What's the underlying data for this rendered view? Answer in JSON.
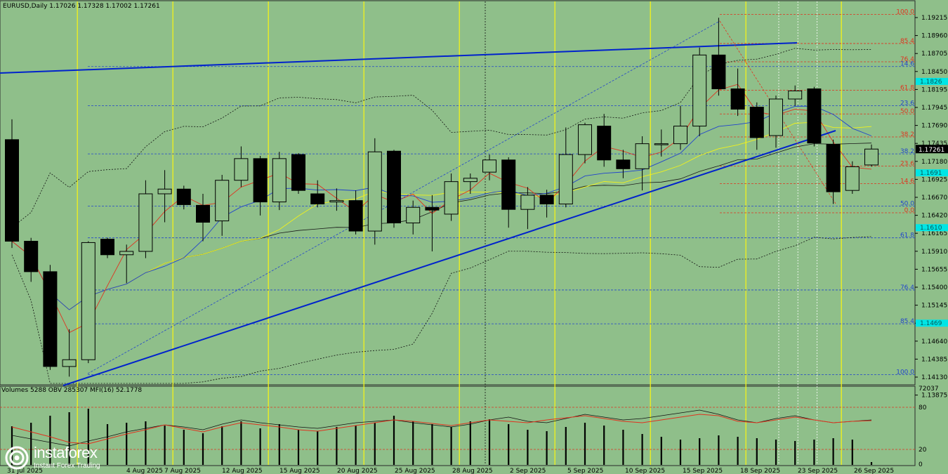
{
  "header": {
    "symbol_line": "EURUSD,Daily  1.17026 1.17328 1.17002 1.17261"
  },
  "indicator_header": "Volumes 5288  OBV 285307  MFI(16) 52.1778",
  "logo": {
    "name": "instaforex",
    "tagline": "Instant Forex Trading"
  },
  "colors": {
    "background": "#8fbf8a",
    "bull_candle": "#8fbf8a",
    "bear_candle": "#000000",
    "trendline": "#0022cc",
    "fib_red": "#e0331f",
    "fib_blue": "#2244cc",
    "vline_yellow": "#f2f21a",
    "price_marker": "#00e5e5"
  },
  "price_axis": {
    "ticks": [
      "1.19215",
      "1.18960",
      "1.18705",
      "1.18450",
      "1.18195",
      "1.17945",
      "1.17690",
      "1.17435",
      "1.17180",
      "1.16925",
      "1.16670",
      "1.16420",
      "1.16165",
      "1.15910",
      "1.15655",
      "1.15400",
      "1.15145",
      "1.14895",
      "1.14640",
      "1.14385",
      "1.14130",
      "1.13875"
    ],
    "current_price": "1.17261",
    "cyan_markers": [
      "1.1826",
      "1.1691",
      "1.1610",
      "1.1469"
    ]
  },
  "fib_red_labels": [
    {
      "label": "100.0",
      "price": 1.1925
    },
    {
      "label": "85.4",
      "price": 1.1882
    },
    {
      "label": "76.4",
      "price": 1.1855
    },
    {
      "label": "61.8",
      "price": 1.1813
    },
    {
      "label": "50.0",
      "price": 1.1778
    },
    {
      "label": "38.2",
      "price": 1.1744
    },
    {
      "label": "23.6",
      "price": 1.1701
    },
    {
      "label": "14.6",
      "price": 1.1675
    },
    {
      "label": "0.0",
      "price": 1.1632
    }
  ],
  "fib_blue_labels": [
    {
      "label": "14.6",
      "price": 1.1848
    },
    {
      "label": "23.6",
      "price": 1.179
    },
    {
      "label": "38.2",
      "price": 1.1719
    },
    {
      "label": "50.0",
      "price": 1.1642
    },
    {
      "label": "61.8",
      "price": 1.1595
    },
    {
      "label": "76.4",
      "price": 1.1518
    },
    {
      "label": "85.4",
      "price": 1.1468
    },
    {
      "label": "100.0",
      "price": 1.1393
    }
  ],
  "date_axis": [
    "31 Jul 2025",
    "4 Aug 2025",
    "7 Aug 2025",
    "12 Aug 2025",
    "15 Aug 2025",
    "20 Aug 2025",
    "25 Aug 2025",
    "28 Aug 2025",
    "2 Sep 2025",
    "5 Sep 2025",
    "10 Sep 2025",
    "15 Sep 2025",
    "18 Sep 2025",
    "23 Sep 2025",
    "26 Sep 2025"
  ],
  "indicator_axis": [
    "72037",
    "80",
    "20",
    "0"
  ],
  "chart_data": {
    "type": "candlestick",
    "title": "EURUSD,Daily",
    "ylim": [
      1.138,
      1.194
    ],
    "candles": [
      {
        "date": "28 Jul 2025",
        "open": 1.174,
        "high": 1.177,
        "low": 1.158,
        "close": 1.159
      },
      {
        "date": "29 Jul 2025",
        "open": 1.159,
        "high": 1.1595,
        "low": 1.153,
        "close": 1.1545
      },
      {
        "date": "30 Jul 2025",
        "open": 1.1545,
        "high": 1.1555,
        "low": 1.14,
        "close": 1.1405
      },
      {
        "date": "31 Jul 2025",
        "open": 1.1405,
        "high": 1.146,
        "low": 1.139,
        "close": 1.1415
      },
      {
        "date": "1 Aug 2025",
        "open": 1.1415,
        "high": 1.159,
        "low": 1.141,
        "close": 1.1588
      },
      {
        "date": "4 Aug 2025",
        "open": 1.1593,
        "high": 1.1595,
        "low": 1.1565,
        "close": 1.157
      },
      {
        "date": "5 Aug 2025",
        "open": 1.157,
        "high": 1.1585,
        "low": 1.1528,
        "close": 1.1575
      },
      {
        "date": "6 Aug 2025",
        "open": 1.1575,
        "high": 1.168,
        "low": 1.1565,
        "close": 1.166
      },
      {
        "date": "7 Aug 2025",
        "open": 1.166,
        "high": 1.1695,
        "low": 1.1618,
        "close": 1.1667
      },
      {
        "date": "8 Aug 2025",
        "open": 1.1667,
        "high": 1.1672,
        "low": 1.1637,
        "close": 1.1644
      },
      {
        "date": "11 Aug 2025",
        "open": 1.1643,
        "high": 1.166,
        "low": 1.159,
        "close": 1.1618
      },
      {
        "date": "12 Aug 2025",
        "open": 1.162,
        "high": 1.1688,
        "low": 1.1598,
        "close": 1.168
      },
      {
        "date": "13 Aug 2025",
        "open": 1.168,
        "high": 1.173,
        "low": 1.167,
        "close": 1.1712
      },
      {
        "date": "14 Aug 2025",
        "open": 1.1712,
        "high": 1.1716,
        "low": 1.1628,
        "close": 1.1648
      },
      {
        "date": "15 Aug 2025",
        "open": 1.1648,
        "high": 1.1722,
        "low": 1.1636,
        "close": 1.1712
      },
      {
        "date": "18 Aug 2025",
        "open": 1.1718,
        "high": 1.172,
        "low": 1.166,
        "close": 1.1665
      },
      {
        "date": "19 Aug 2025",
        "open": 1.166,
        "high": 1.168,
        "low": 1.164,
        "close": 1.1645
      },
      {
        "date": "20 Aug 2025",
        "open": 1.1648,
        "high": 1.1668,
        "low": 1.1635,
        "close": 1.165
      },
      {
        "date": "21 Aug 2025",
        "open": 1.165,
        "high": 1.1665,
        "low": 1.16,
        "close": 1.1605
      },
      {
        "date": "22 Aug 2025",
        "open": 1.1605,
        "high": 1.1742,
        "low": 1.1585,
        "close": 1.1722
      },
      {
        "date": "25 Aug 2025",
        "open": 1.1723,
        "high": 1.1725,
        "low": 1.161,
        "close": 1.1617
      },
      {
        "date": "26 Aug 2025",
        "open": 1.1617,
        "high": 1.165,
        "low": 1.16,
        "close": 1.164
      },
      {
        "date": "27 Aug 2025",
        "open": 1.164,
        "high": 1.1658,
        "low": 1.1575,
        "close": 1.1636
      },
      {
        "date": "28 Aug 2025",
        "open": 1.163,
        "high": 1.169,
        "low": 1.162,
        "close": 1.1678
      },
      {
        "date": "29 Aug 2025",
        "open": 1.1678,
        "high": 1.169,
        "low": 1.166,
        "close": 1.1683
      },
      {
        "date": "1 Sep 2025",
        "open": 1.1692,
        "high": 1.1718,
        "low": 1.168,
        "close": 1.171
      },
      {
        "date": "2 Sep 2025",
        "open": 1.171,
        "high": 1.1714,
        "low": 1.161,
        "close": 1.1637
      },
      {
        "date": "3 Sep 2025",
        "open": 1.1637,
        "high": 1.167,
        "low": 1.1608,
        "close": 1.1658
      },
      {
        "date": "4 Sep 2025",
        "open": 1.1658,
        "high": 1.1666,
        "low": 1.1625,
        "close": 1.1645
      },
      {
        "date": "5 Sep 2025",
        "open": 1.1645,
        "high": 1.1758,
        "low": 1.164,
        "close": 1.1718
      },
      {
        "date": "8 Sep 2025",
        "open": 1.1718,
        "high": 1.1765,
        "low": 1.1705,
        "close": 1.1762
      },
      {
        "date": "9 Sep 2025",
        "open": 1.176,
        "high": 1.1778,
        "low": 1.17,
        "close": 1.171
      },
      {
        "date": "10 Sep 2025",
        "open": 1.171,
        "high": 1.1725,
        "low": 1.1683,
        "close": 1.1697
      },
      {
        "date": "11 Sep 2025",
        "open": 1.1697,
        "high": 1.1745,
        "low": 1.1665,
        "close": 1.1734
      },
      {
        "date": "12 Sep 2025",
        "open": 1.1734,
        "high": 1.1755,
        "low": 1.1715,
        "close": 1.1734
      },
      {
        "date": "15 Sep 2025",
        "open": 1.1734,
        "high": 1.179,
        "low": 1.1725,
        "close": 1.176
      },
      {
        "date": "16 Sep 2025",
        "open": 1.176,
        "high": 1.1876,
        "low": 1.1745,
        "close": 1.1865
      },
      {
        "date": "17 Sep 2025",
        "open": 1.1865,
        "high": 1.192,
        "low": 1.1805,
        "close": 1.1815
      },
      {
        "date": "18 Sep 2025",
        "open": 1.1815,
        "high": 1.1845,
        "low": 1.1775,
        "close": 1.1785
      },
      {
        "date": "19 Sep 2025",
        "open": 1.1788,
        "high": 1.1795,
        "low": 1.1725,
        "close": 1.1743
      },
      {
        "date": "22 Sep 2025",
        "open": 1.1746,
        "high": 1.1805,
        "low": 1.1728,
        "close": 1.18
      },
      {
        "date": "23 Sep 2025",
        "open": 1.18,
        "high": 1.182,
        "low": 1.179,
        "close": 1.1812
      },
      {
        "date": "24 Sep 2025",
        "open": 1.1815,
        "high": 1.1818,
        "low": 1.173,
        "close": 1.1735
      },
      {
        "date": "25 Sep 2025",
        "open": 1.1733,
        "high": 1.174,
        "low": 1.1645,
        "close": 1.1663
      },
      {
        "date": "26 Sep 2025",
        "open": 1.1665,
        "high": 1.1708,
        "low": 1.166,
        "close": 1.17
      },
      {
        "date": "29 Sep 2025",
        "open": 1.17026,
        "high": 1.17328,
        "low": 1.17002,
        "close": 1.17261
      }
    ],
    "mfi": [
      52,
      45,
      38,
      30,
      28,
      35,
      42,
      48,
      55,
      50,
      45,
      52,
      58,
      55,
      52,
      48,
      46,
      50,
      54,
      58,
      62,
      60,
      57,
      54,
      58,
      62,
      60,
      58,
      62,
      65,
      68,
      64,
      60,
      58,
      62,
      66,
      70,
      68,
      60,
      58,
      62,
      66,
      62,
      58,
      60,
      61
    ],
    "obv_line": [
      40,
      35,
      30,
      25,
      32,
      38,
      45,
      50,
      55,
      52,
      48,
      56,
      62,
      58,
      55,
      52,
      50,
      54,
      58,
      60,
      62,
      58,
      55,
      52,
      56,
      62,
      66,
      60,
      58,
      64,
      70,
      66,
      62,
      64,
      68,
      72,
      76,
      70,
      62,
      58,
      64,
      68,
      62,
      58,
      60,
      62
    ],
    "volumes": [
      55,
      60,
      70,
      75,
      80,
      58,
      60,
      62,
      56,
      50,
      45,
      55,
      62,
      52,
      58,
      50,
      48,
      54,
      56,
      60,
      70,
      62,
      58,
      54,
      62,
      65,
      58,
      50,
      48,
      54,
      60,
      56,
      50,
      44,
      40,
      36,
      38,
      42,
      40,
      38,
      36,
      34,
      36,
      38,
      36,
      4
    ]
  }
}
